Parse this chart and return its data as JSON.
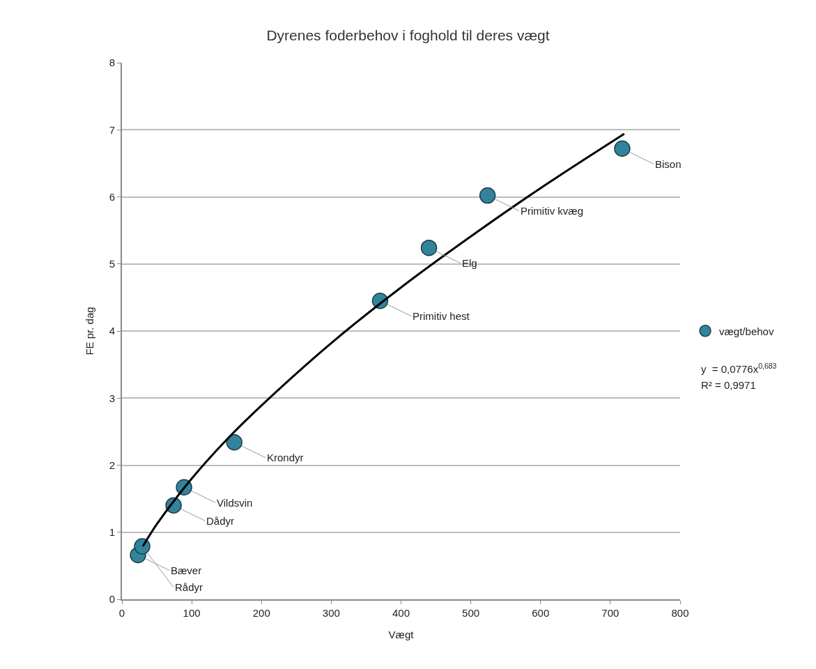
{
  "chart_data": {
    "type": "scatter",
    "title": "Dyrenes foderbehov i foghold til deres vægt",
    "xlabel": "Vægt",
    "ylabel": "FE pr. dag",
    "x": [
      23,
      29,
      74,
      89,
      161,
      370,
      440,
      524,
      717
    ],
    "series": [
      {
        "name": "vægt/behov",
        "color": "#31849b",
        "values": [
          0.66,
          0.79,
          1.4,
          1.67,
          2.34,
          4.45,
          5.24,
          6.02,
          6.72
        ],
        "marker": "circle"
      },
      {
        "type": "line",
        "color": "#000000",
        "x": [
          30,
          50,
          100,
          150,
          200,
          300,
          400,
          500,
          600,
          720
        ],
        "values": [
          0.79,
          1.12,
          1.8,
          2.38,
          2.89,
          3.82,
          4.65,
          5.41,
          6.13,
          6.94
        ]
      }
    ],
    "annotations": [
      {
        "text": "Bæver",
        "x": 23,
        "y": 0.66
      },
      {
        "text": "Rådyr",
        "x": 29,
        "y": 0.79
      },
      {
        "text": "Dådyr",
        "x": 74,
        "y": 1.4
      },
      {
        "text": "Vildsvin",
        "x": 89,
        "y": 1.67
      },
      {
        "text": "Krondyr",
        "x": 161,
        "y": 2.34
      },
      {
        "text": "Primitiv hest",
        "x": 370,
        "y": 4.45
      },
      {
        "text": "Elg",
        "x": 440,
        "y": 5.24
      },
      {
        "text": "Primitiv kvæg",
        "x": 524,
        "y": 6.02
      },
      {
        "text": "Bison",
        "x": 717,
        "y": 6.72
      },
      "y  = 0,0776x$^{0,683}$",
      "R² = 0,9971"
    ],
    "xlim": [
      0,
      800
    ],
    "xticks": [
      0,
      100,
      200,
      300,
      400,
      500,
      600,
      700,
      800
    ],
    "ylim": [
      0,
      8
    ],
    "yticks": [
      0,
      1,
      2,
      3,
      4,
      5,
      6,
      7,
      8
    ],
    "grid": "y",
    "legend": "right"
  }
}
